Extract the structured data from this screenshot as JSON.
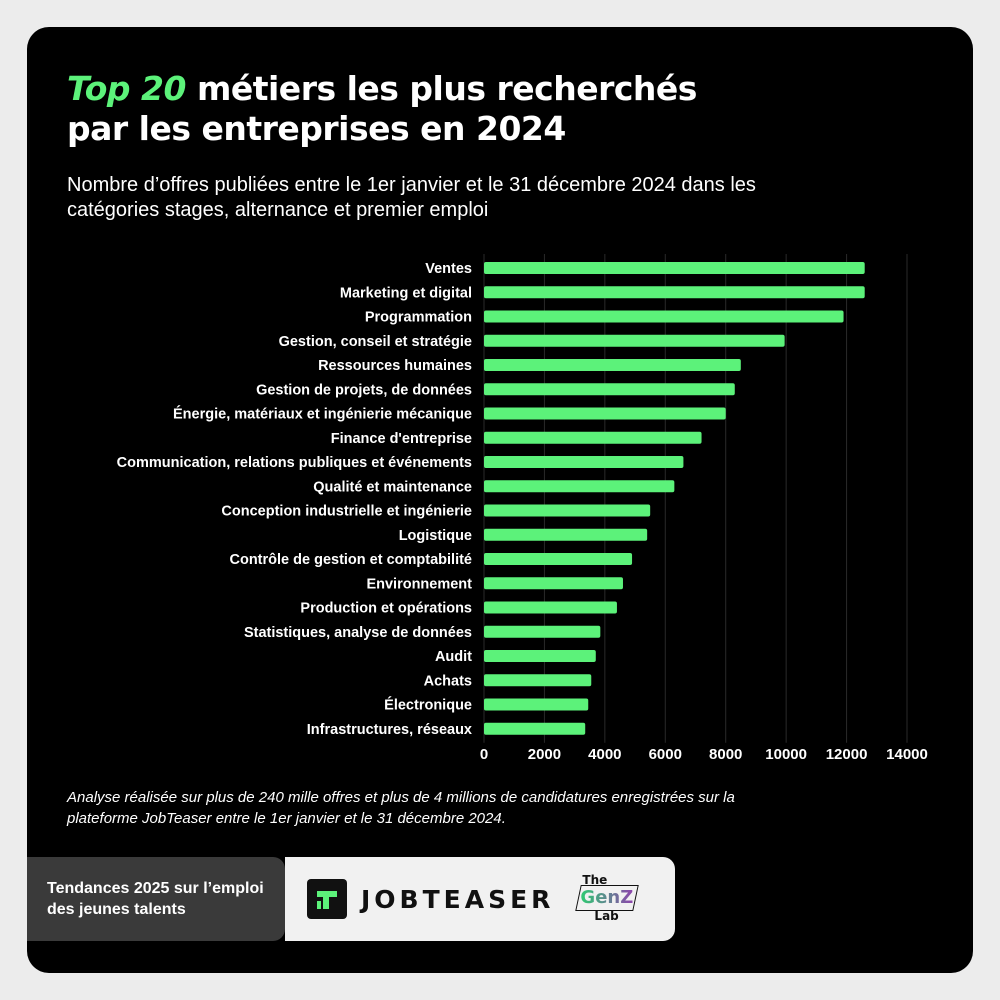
{
  "title": {
    "accent": "Top 20",
    "rest": " métiers les plus recherchés",
    "line2": "par les entreprises en 2024"
  },
  "subtitle": "Nombre d’offres publiées entre le 1er janvier et le 31 décembre 2024 dans les catégories stages, alternance et premier emploi",
  "chart_data": {
    "type": "bar",
    "orientation": "horizontal",
    "categories": [
      "Ventes",
      "Marketing et digital",
      "Programmation",
      "Gestion, conseil et stratégie",
      "Ressources humaines",
      "Gestion de projets, de données",
      "Énergie, matériaux et ingénierie mécanique",
      "Finance d'entreprise",
      "Communication, relations publiques et événements",
      "Qualité et maintenance",
      "Conception industrielle et ingénierie",
      "Logistique",
      "Contrôle de gestion et comptabilité",
      "Environnement",
      "Production et opérations",
      "Statistiques, analyse de données",
      "Audit",
      "Achats",
      "Électronique",
      "Infrastructures, réseaux"
    ],
    "values": [
      12600,
      12600,
      11900,
      9950,
      8500,
      8300,
      8000,
      7200,
      6600,
      6300,
      5500,
      5400,
      4900,
      4600,
      4400,
      3850,
      3700,
      3550,
      3450,
      3350
    ],
    "xlim": [
      0,
      14000
    ],
    "xticks": [
      0,
      2000,
      4000,
      6000,
      8000,
      10000,
      12000,
      14000
    ],
    "grid": true,
    "bar_color": "#5cf27a"
  },
  "footnote": "Analyse réalisée sur plus de 240 mille offres et plus de 4 millions de candidatures enregistrées sur la plateforme JobTeaser entre le 1er janvier et le 31 décembre 2024.",
  "footer": {
    "tagline": "Tendances 2025 sur l’emploi des jeunes talents",
    "brand": "JOBTEASER",
    "genz_line1": "The",
    "genz_line2": "GenZ",
    "genz_line3": "Lab",
    "logo_icon": "jobteaser-logo-icon"
  }
}
